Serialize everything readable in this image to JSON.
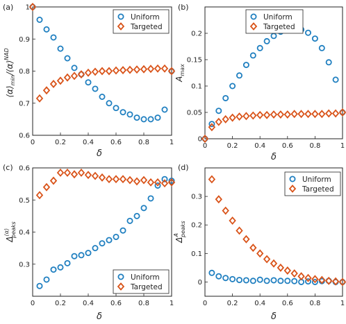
{
  "figure": {
    "colors": {
      "uniform": "#1f7fc0",
      "targeted": "#d95319"
    },
    "marker_shapes": {
      "uniform": "circle",
      "targeted": "diamond"
    }
  },
  "chart_data": [
    {
      "type": "scatter",
      "panel_label": "(a)",
      "xlabel": "δ",
      "ylabel": "⟨α⟩_min / ⟨α⟩^NAD",
      "xlim": [
        0,
        1
      ],
      "ylim": [
        0.6,
        1.0
      ],
      "xticks": [
        0,
        0.2,
        0.4,
        0.6,
        0.8,
        1
      ],
      "yticks": [
        0.6,
        0.7,
        0.8,
        0.9,
        1
      ],
      "xtick_labels": [
        "0",
        "0.2",
        "0.4",
        "0.6",
        "0.8",
        "1"
      ],
      "ytick_labels": [
        "0.6",
        "0.7",
        "0.8",
        "0.9",
        "1"
      ],
      "legend_position": "top-right",
      "series": [
        {
          "name": "Uniform",
          "marker": "circle",
          "x": [
            0,
            0.05,
            0.1,
            0.15,
            0.2,
            0.25,
            0.3,
            0.35,
            0.4,
            0.45,
            0.5,
            0.55,
            0.6,
            0.65,
            0.7,
            0.75,
            0.8,
            0.85,
            0.9,
            0.95,
            1.0
          ],
          "y": [
            1.0,
            0.96,
            0.93,
            0.905,
            0.87,
            0.84,
            0.81,
            0.79,
            0.765,
            0.745,
            0.72,
            0.7,
            0.685,
            0.672,
            0.665,
            0.655,
            0.65,
            0.65,
            0.655,
            0.68,
            0.8
          ]
        },
        {
          "name": "Targeted",
          "marker": "diamond",
          "x": [
            0,
            0.05,
            0.1,
            0.15,
            0.2,
            0.25,
            0.3,
            0.35,
            0.4,
            0.45,
            0.5,
            0.55,
            0.6,
            0.65,
            0.7,
            0.75,
            0.8,
            0.85,
            0.9,
            0.95,
            1.0
          ],
          "y": [
            1.0,
            0.715,
            0.74,
            0.76,
            0.77,
            0.78,
            0.785,
            0.79,
            0.795,
            0.798,
            0.8,
            0.8,
            0.802,
            0.803,
            0.804,
            0.805,
            0.806,
            0.807,
            0.808,
            0.808,
            0.8
          ]
        }
      ]
    },
    {
      "type": "scatter",
      "panel_label": "(b)",
      "xlabel": "δ",
      "ylabel": "A_max",
      "xlim": [
        0,
        1
      ],
      "ylim": [
        0,
        0.25
      ],
      "xticks": [
        0,
        0.2,
        0.4,
        0.6,
        0.8,
        1
      ],
      "yticks": [
        0,
        0.05,
        0.1,
        0.15,
        0.2
      ],
      "xtick_labels": [
        "0",
        "0.2",
        "0.4",
        "0.6",
        "0.8",
        "1"
      ],
      "ytick_labels": [
        "0",
        "0.05",
        "0.1",
        "0.15",
        "0.2"
      ],
      "legend_position": "top-center",
      "series": [
        {
          "name": "Uniform",
          "marker": "circle",
          "x": [
            0,
            0.05,
            0.1,
            0.15,
            0.2,
            0.25,
            0.3,
            0.35,
            0.4,
            0.45,
            0.5,
            0.55,
            0.6,
            0.65,
            0.7,
            0.75,
            0.8,
            0.85,
            0.9,
            0.95,
            1.0
          ],
          "y": [
            0.0,
            0.028,
            0.053,
            0.077,
            0.1,
            0.12,
            0.14,
            0.158,
            0.172,
            0.185,
            0.195,
            0.203,
            0.207,
            0.209,
            0.207,
            0.201,
            0.19,
            0.172,
            0.145,
            0.112,
            0.05
          ]
        },
        {
          "name": "Targeted",
          "marker": "diamond",
          "x": [
            0,
            0.05,
            0.1,
            0.15,
            0.2,
            0.25,
            0.3,
            0.35,
            0.4,
            0.45,
            0.5,
            0.55,
            0.6,
            0.65,
            0.7,
            0.75,
            0.8,
            0.85,
            0.9,
            0.95,
            1.0
          ],
          "y": [
            0.0,
            0.022,
            0.032,
            0.037,
            0.04,
            0.042,
            0.043,
            0.044,
            0.045,
            0.045,
            0.046,
            0.046,
            0.046,
            0.047,
            0.047,
            0.047,
            0.047,
            0.047,
            0.048,
            0.048,
            0.05
          ]
        }
      ]
    },
    {
      "type": "scatter",
      "panel_label": "(c)",
      "xlabel": "δ",
      "ylabel": "Δ^⟨α⟩_peaks",
      "xlim": [
        0,
        1
      ],
      "ylim": [
        0.2,
        0.6
      ],
      "xticks": [
        0,
        0.2,
        0.4,
        0.6,
        0.8,
        1
      ],
      "yticks": [
        0.2,
        0.3,
        0.4,
        0.5,
        0.6
      ],
      "xtick_labels": [
        "0",
        "0.2",
        "0.4",
        "0.6",
        "0.8",
        "1"
      ],
      "ytick_labels": [
        "",
        "0.3",
        "0.4",
        "0.5",
        "0.6"
      ],
      "legend_position": "bottom-right",
      "series": [
        {
          "name": "Uniform",
          "marker": "circle",
          "x": [
            0.05,
            0.1,
            0.15,
            0.2,
            0.25,
            0.3,
            0.35,
            0.4,
            0.45,
            0.5,
            0.55,
            0.6,
            0.65,
            0.7,
            0.75,
            0.8,
            0.85,
            0.9,
            0.95,
            1.0
          ],
          "y": [
            0.232,
            0.252,
            0.283,
            0.29,
            0.303,
            0.325,
            0.328,
            0.335,
            0.35,
            0.365,
            0.375,
            0.385,
            0.405,
            0.435,
            0.45,
            0.475,
            0.505,
            0.545,
            0.565,
            0.56
          ]
        },
        {
          "name": "Targeted",
          "marker": "diamond",
          "x": [
            0.05,
            0.1,
            0.15,
            0.2,
            0.25,
            0.3,
            0.35,
            0.4,
            0.45,
            0.5,
            0.55,
            0.6,
            0.65,
            0.7,
            0.75,
            0.8,
            0.85,
            0.9,
            0.95,
            1.0
          ],
          "y": [
            0.515,
            0.54,
            0.56,
            0.585,
            0.585,
            0.58,
            0.585,
            0.578,
            0.575,
            0.57,
            0.565,
            0.565,
            0.565,
            0.562,
            0.558,
            0.562,
            0.555,
            0.555,
            0.552,
            0.555
          ]
        }
      ]
    },
    {
      "type": "scatter",
      "panel_label": "(d)",
      "xlabel": "δ",
      "ylabel": "Δ^A_peaks",
      "xlim": [
        0,
        1
      ],
      "ylim": [
        -0.05,
        0.4
      ],
      "xticks": [
        0,
        0.2,
        0.4,
        0.6,
        0.8,
        1
      ],
      "yticks": [
        0,
        0.1,
        0.2,
        0.3
      ],
      "xtick_labels": [
        "0",
        "0.2",
        "0.4",
        "0.6",
        "0.8",
        "1"
      ],
      "ytick_labels": [
        "0",
        "0.1",
        "0.2",
        "0.3"
      ],
      "legend_position": "top-right",
      "series": [
        {
          "name": "Uniform",
          "marker": "circle",
          "x": [
            0.05,
            0.1,
            0.15,
            0.2,
            0.25,
            0.3,
            0.35,
            0.4,
            0.45,
            0.5,
            0.55,
            0.6,
            0.65,
            0.7,
            0.75,
            0.8,
            0.85,
            0.9,
            0.95,
            1.0
          ],
          "y": [
            0.032,
            0.02,
            0.014,
            0.01,
            0.007,
            0.006,
            0.004,
            0.008,
            0.004,
            0.006,
            0.004,
            0.004,
            0.003,
            0.0,
            0.002,
            0.0,
            0.003,
            0.004,
            0.0,
            0.0
          ]
        },
        {
          "name": "Targeted",
          "marker": "diamond",
          "x": [
            0.05,
            0.1,
            0.15,
            0.2,
            0.25,
            0.3,
            0.35,
            0.4,
            0.45,
            0.5,
            0.55,
            0.6,
            0.65,
            0.7,
            0.75,
            0.8,
            0.85,
            0.9,
            0.95,
            1.0
          ],
          "y": [
            0.36,
            0.29,
            0.25,
            0.215,
            0.18,
            0.15,
            0.12,
            0.1,
            0.08,
            0.065,
            0.05,
            0.04,
            0.03,
            0.02,
            0.014,
            0.01,
            0.007,
            0.004,
            0.002,
            0.0
          ]
        }
      ]
    }
  ]
}
